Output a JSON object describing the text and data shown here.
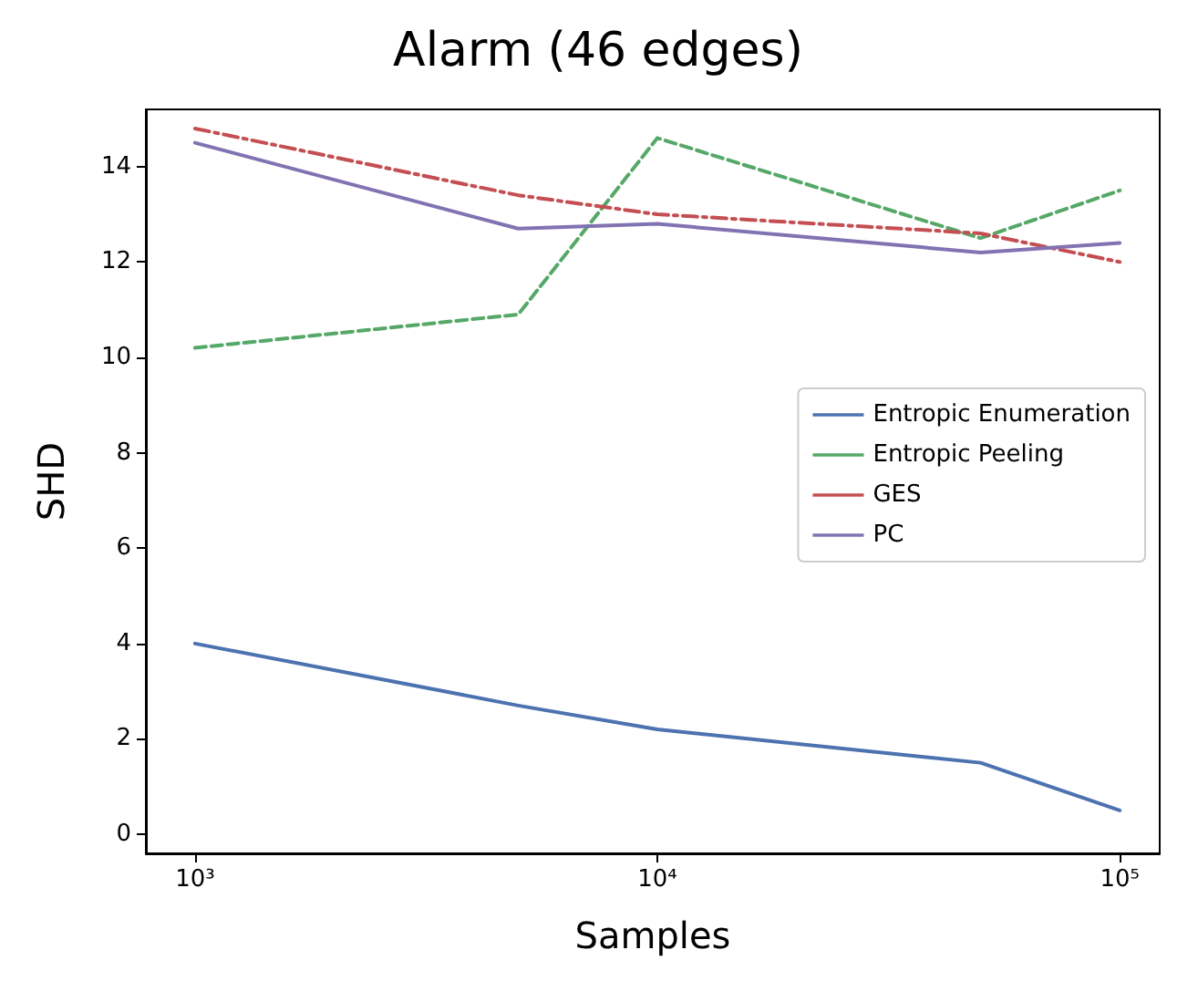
{
  "chart_data": {
    "type": "line",
    "title": "Alarm (46 edges)",
    "xlabel": "Samples",
    "ylabel": "SHD",
    "x": [
      1000,
      5000,
      10000,
      50000,
      100000
    ],
    "series": [
      {
        "name": "Entropic Enumeration",
        "color": "#4c72b0",
        "line_style": "solid",
        "values": [
          4.0,
          2.7,
          2.2,
          1.5,
          0.5
        ]
      },
      {
        "name": "Entropic Peeling",
        "color": "#55a868",
        "line_style": "dashed",
        "values": [
          10.2,
          10.9,
          14.6,
          12.5,
          13.5
        ]
      },
      {
        "name": "GES",
        "color": "#c44e52",
        "line_style": "dashdot",
        "values": [
          14.8,
          13.4,
          13.0,
          12.6,
          12.0
        ]
      },
      {
        "name": "PC",
        "color": "#8172b2",
        "line_style": "solid",
        "values": [
          14.5,
          12.7,
          12.8,
          12.2,
          12.4
        ]
      }
    ],
    "log": "x",
    "xlim": [
      783,
      122000
    ],
    "xticks": [
      {
        "value": 1000,
        "label": "10³"
      },
      {
        "value": 10000,
        "label": "10⁴"
      },
      {
        "value": 100000,
        "label": "10⁵"
      }
    ],
    "ylim": [
      -0.4,
      15.2
    ],
    "yticks": [
      0,
      2,
      4,
      6,
      8,
      10,
      12,
      14
    ],
    "grid": false,
    "legend": "right",
    "marker": "none"
  }
}
